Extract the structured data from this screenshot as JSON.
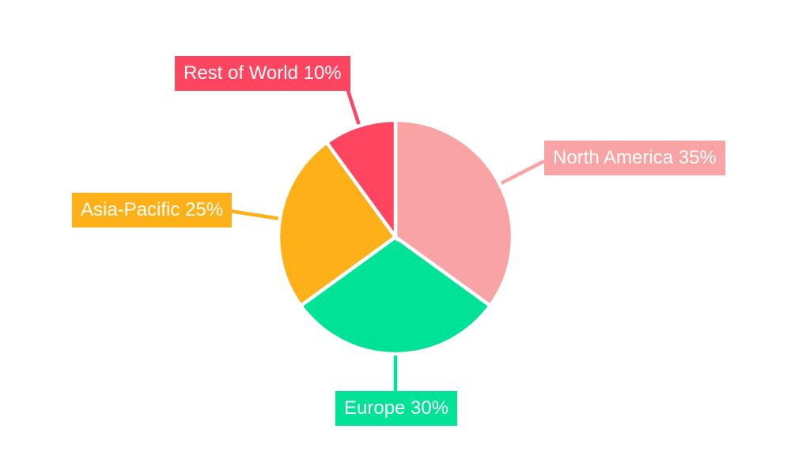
{
  "chart_data": {
    "type": "pie",
    "title": "",
    "background": "#ffffff",
    "direction": "clockwise",
    "start_angle_deg": 0,
    "legend_position": "none",
    "label_text_color": "#ffffff",
    "separator_color": "#ffffff",
    "slices": [
      {
        "label": "North America",
        "value": 35,
        "display": "North America 35%",
        "color": "#F9A3A4"
      },
      {
        "label": "Europe",
        "value": 30,
        "display": "Europe 30%",
        "color": "#00E396"
      },
      {
        "label": "Asia-Pacific",
        "value": 25,
        "display": "Asia-Pacific 25%",
        "color": "#FEB019"
      },
      {
        "label": "Rest of World",
        "value": 10,
        "display": "Rest of World 10%",
        "color": "#FF4560"
      }
    ]
  }
}
